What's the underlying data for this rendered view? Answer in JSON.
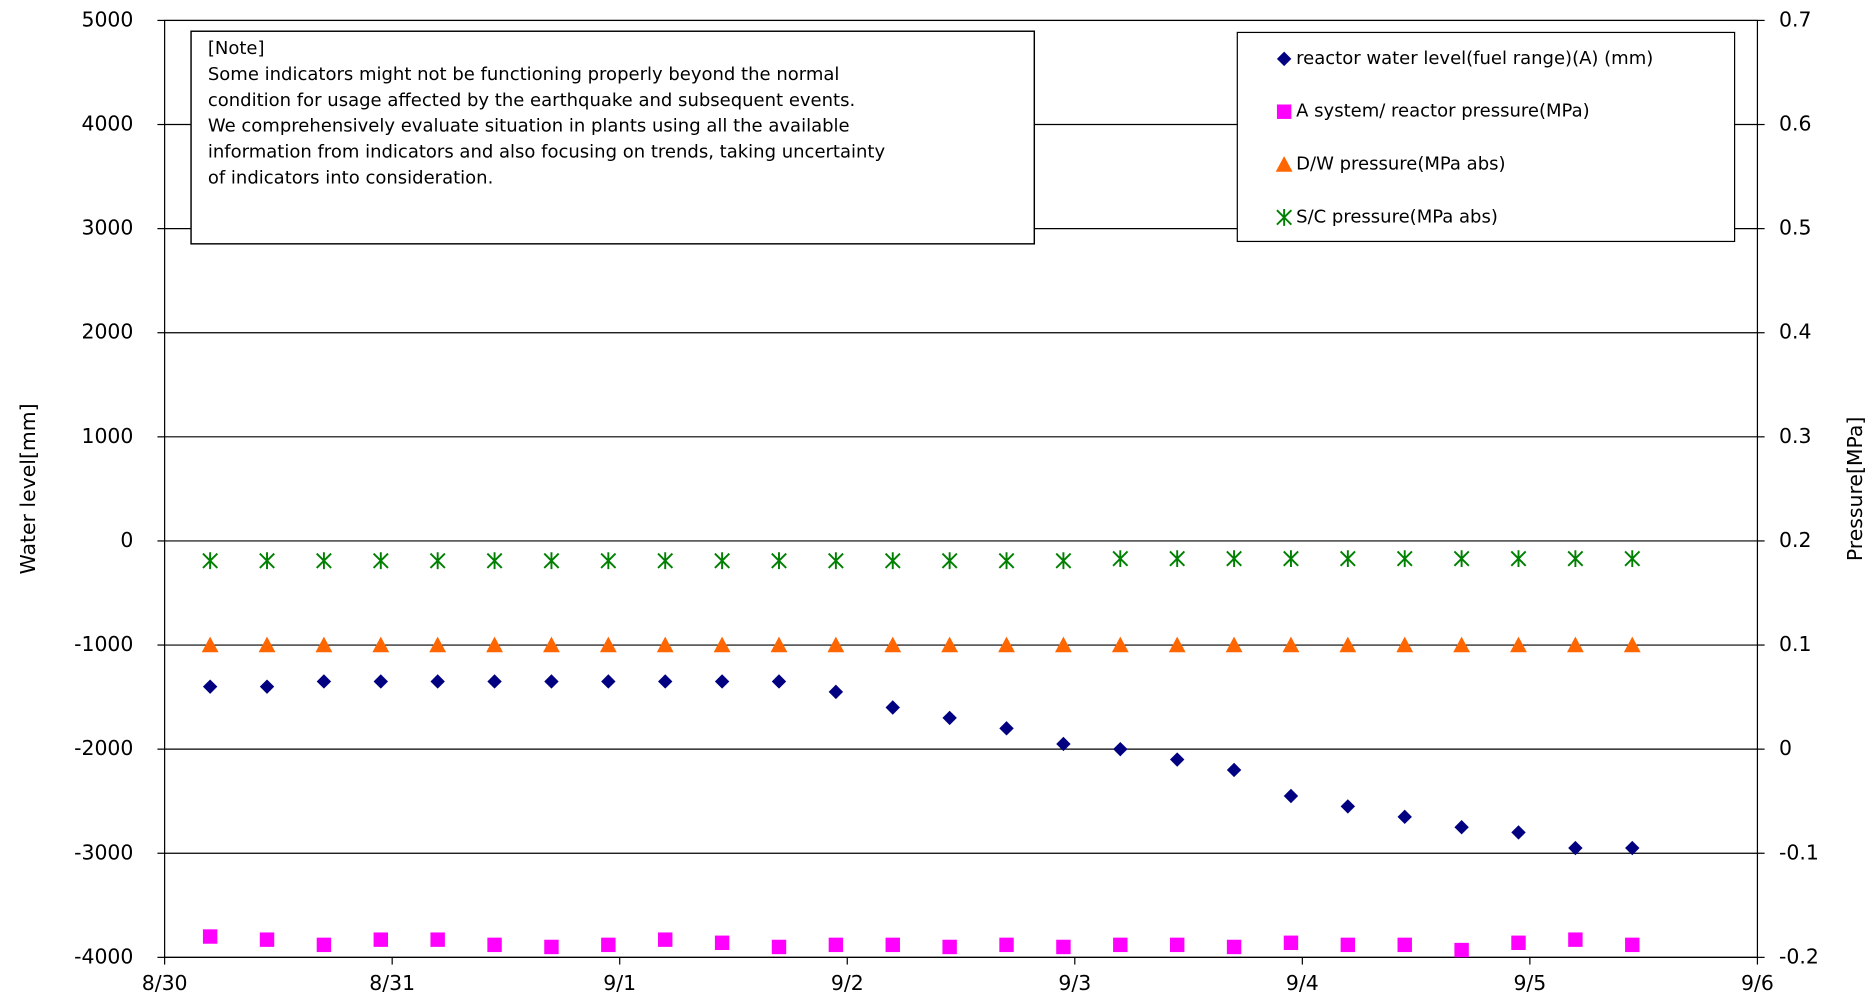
{
  "chart_data": {
    "type": "scatter",
    "ylabel": "Water level[mm]",
    "y2label": "Pressure[MPa]",
    "note": [
      "[Note]",
      "Some indicators might not be functioning properly beyond the normal",
      "condition for usage affected by the earthquake and subsequent events.",
      "We comprehensively evaluate situation in plants using all the available",
      "information from indicators and also focusing on trends, taking uncertainty",
      "of indicators into consideration."
    ],
    "x": [
      0.2,
      0.45,
      0.7,
      0.95,
      1.2,
      1.45,
      1.7,
      1.95,
      2.2,
      2.45,
      2.7,
      2.95,
      3.2,
      3.45,
      3.7,
      3.95,
      4.2,
      4.45,
      4.7,
      4.95,
      5.2,
      5.45,
      5.7,
      5.95,
      6.2,
      6.45
    ],
    "xlim": [
      0,
      7
    ],
    "xticks": [
      {
        "value": 0,
        "label": "8/30"
      },
      {
        "value": 1,
        "label": "8/31"
      },
      {
        "value": 2,
        "label": "9/1"
      },
      {
        "value": 3,
        "label": "9/2"
      },
      {
        "value": 4,
        "label": "9/3"
      },
      {
        "value": 5,
        "label": "9/4"
      },
      {
        "value": 6,
        "label": "9/5"
      },
      {
        "value": 7,
        "label": "9/6"
      }
    ],
    "ylim": [
      -4000,
      5000
    ],
    "yticks": [
      -4000,
      -3000,
      -2000,
      -1000,
      0,
      1000,
      2000,
      3000,
      4000,
      5000
    ],
    "y2lim": [
      -0.2,
      0.7
    ],
    "y2ticks": [
      -0.2,
      -0.1,
      0,
      0.1,
      0.2,
      0.3,
      0.4,
      0.5,
      0.6,
      0.7
    ],
    "grid": true,
    "legend": "upper right",
    "series": [
      {
        "name": "reactor water level(fuel range)(A) (mm)",
        "color": "#000080",
        "marker": "diamond",
        "values": [
          -1400,
          -1400,
          -1350,
          -1350,
          -1350,
          -1350,
          -1350,
          -1350,
          -1350,
          -1350,
          -1350,
          -1450,
          -1600,
          -1700,
          -1800,
          -1950,
          -2000,
          -2100,
          -2200,
          -2450,
          -2550,
          -2650,
          -2750,
          -2800,
          -2950,
          -2950
        ]
      },
      {
        "name": "A system/ reactor pressure(MPa)",
        "color": "#ff00ff",
        "marker": "square",
        "axis": "y2",
        "values": [
          -0.18,
          -0.183,
          -0.188,
          -0.183,
          -0.183,
          -0.188,
          -0.19,
          -0.188,
          -0.183,
          -0.186,
          -0.19,
          -0.188,
          -0.188,
          -0.19,
          -0.188,
          -0.19,
          -0.188,
          -0.188,
          -0.19,
          -0.186,
          -0.188,
          -0.188,
          -0.193,
          -0.186,
          -0.183,
          -0.188
        ]
      },
      {
        "name": "D/W pressure(MPa abs)",
        "color": "#ff6600",
        "marker": "triangle",
        "axis": "y2",
        "values": [
          0.1,
          0.1,
          0.1,
          0.1,
          0.1,
          0.1,
          0.1,
          0.1,
          0.1,
          0.1,
          0.1,
          0.1,
          0.1,
          0.1,
          0.1,
          0.1,
          0.1,
          0.1,
          0.1,
          0.1,
          0.1,
          0.1,
          0.1,
          0.1,
          0.1,
          0.1
        ]
      },
      {
        "name": "S/C pressure(MPa abs)",
        "color": "#008000",
        "marker": "asterisk",
        "axis": "y2",
        "values": [
          0.181,
          0.181,
          0.181,
          0.181,
          0.181,
          0.181,
          0.181,
          0.181,
          0.181,
          0.181,
          0.181,
          0.181,
          0.181,
          0.181,
          0.181,
          0.181,
          0.183,
          0.183,
          0.183,
          0.183,
          0.183,
          0.183,
          0.183,
          0.183,
          0.183,
          0.183
        ]
      }
    ]
  }
}
